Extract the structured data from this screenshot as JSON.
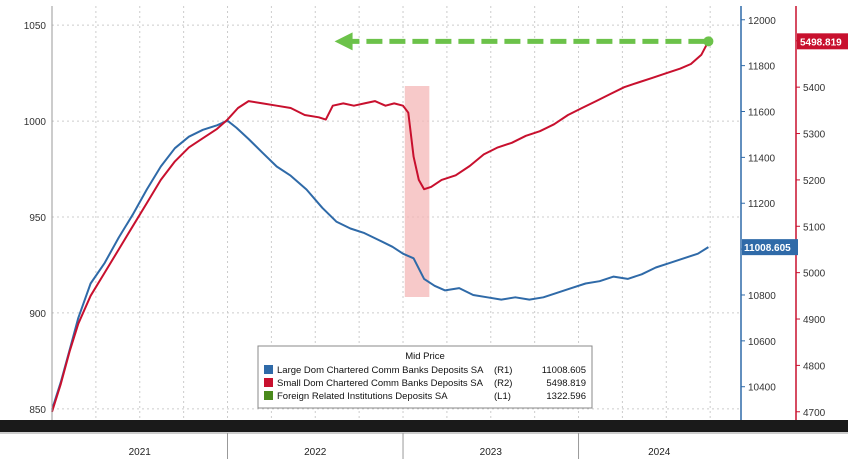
{
  "chart_data": {
    "type": "line",
    "x_labels": [
      "2021",
      "2022",
      "2023",
      "2024"
    ],
    "axes": {
      "left": {
        "id": "L1",
        "ylim": [
          840,
          1060
        ],
        "ticks": [
          850,
          900,
          950,
          1000,
          1050
        ]
      },
      "right1": {
        "id": "R1",
        "ylim": [
          10220,
          12060
        ],
        "ticks": [
          10400,
          10600,
          10800,
          11000,
          11200,
          11400,
          11600,
          11800,
          12000
        ],
        "color": "#2f6aa8"
      },
      "right2": {
        "id": "R2",
        "ylim": [
          4665,
          5575
        ],
        "ticks": [
          4700,
          4800,
          4900,
          5000,
          5100,
          5200,
          5300,
          5400,
          5500
        ],
        "color": "#c8102e"
      }
    },
    "legend": {
      "title": "Mid Price",
      "placement": "bottom-center",
      "entries": [
        {
          "name": "Large Dom Chartered Comm Banks Deposits SA",
          "axis": "(R1)",
          "last": "11008.605",
          "color": "#2f6aa8"
        },
        {
          "name": "Small Dom Chartered Comm Banks Deposits SA",
          "axis": "(R2)",
          "last": "5498.819",
          "color": "#c8102e"
        },
        {
          "name": "Foreign Related Institutions Deposits SA",
          "axis": "(L1)",
          "last": "1322.596",
          "color": "#4a8a1c"
        }
      ]
    },
    "series": [
      {
        "name": "Large Dom Chartered Comm Banks Deposits SA",
        "axis": "right1",
        "color": "#2f6aa8",
        "points": [
          [
            2021.0,
            10300
          ],
          [
            2021.05,
            10420
          ],
          [
            2021.1,
            10560
          ],
          [
            2021.15,
            10700
          ],
          [
            2021.22,
            10850
          ],
          [
            2021.3,
            10940
          ],
          [
            2021.38,
            11050
          ],
          [
            2021.46,
            11150
          ],
          [
            2021.54,
            11260
          ],
          [
            2021.62,
            11360
          ],
          [
            2021.7,
            11440
          ],
          [
            2021.78,
            11490
          ],
          [
            2021.86,
            11520
          ],
          [
            2021.94,
            11540
          ],
          [
            2022.0,
            11560
          ],
          [
            2022.05,
            11530
          ],
          [
            2022.12,
            11480
          ],
          [
            2022.2,
            11420
          ],
          [
            2022.28,
            11360
          ],
          [
            2022.36,
            11320
          ],
          [
            2022.45,
            11260
          ],
          [
            2022.54,
            11180
          ],
          [
            2022.62,
            11120
          ],
          [
            2022.7,
            11090
          ],
          [
            2022.78,
            11070
          ],
          [
            2022.86,
            11040
          ],
          [
            2022.94,
            11010
          ],
          [
            2023.0,
            10980
          ],
          [
            2023.06,
            10960
          ],
          [
            2023.12,
            10870
          ],
          [
            2023.18,
            10840
          ],
          [
            2023.24,
            10820
          ],
          [
            2023.32,
            10830
          ],
          [
            2023.4,
            10800
          ],
          [
            2023.48,
            10790
          ],
          [
            2023.56,
            10780
          ],
          [
            2023.64,
            10790
          ],
          [
            2023.72,
            10780
          ],
          [
            2023.8,
            10790
          ],
          [
            2023.88,
            10810
          ],
          [
            2023.96,
            10830
          ],
          [
            2024.04,
            10850
          ],
          [
            2024.12,
            10860
          ],
          [
            2024.2,
            10880
          ],
          [
            2024.28,
            10870
          ],
          [
            2024.36,
            10890
          ],
          [
            2024.44,
            10920
          ],
          [
            2024.52,
            10940
          ],
          [
            2024.6,
            10960
          ],
          [
            2024.68,
            10980
          ],
          [
            2024.74,
            11008.605
          ]
        ]
      },
      {
        "name": "Small Dom Chartered Comm Banks Deposits SA",
        "axis": "right2",
        "color": "#c8102e",
        "points": [
          [
            2021.0,
            4700
          ],
          [
            2021.05,
            4760
          ],
          [
            2021.1,
            4830
          ],
          [
            2021.15,
            4890
          ],
          [
            2021.22,
            4950
          ],
          [
            2021.3,
            5000
          ],
          [
            2021.38,
            5050
          ],
          [
            2021.46,
            5100
          ],
          [
            2021.54,
            5150
          ],
          [
            2021.62,
            5200
          ],
          [
            2021.7,
            5240
          ],
          [
            2021.78,
            5270
          ],
          [
            2021.86,
            5290
          ],
          [
            2021.94,
            5310
          ],
          [
            2022.0,
            5330
          ],
          [
            2022.06,
            5355
          ],
          [
            2022.12,
            5370
          ],
          [
            2022.2,
            5365
          ],
          [
            2022.28,
            5360
          ],
          [
            2022.36,
            5355
          ],
          [
            2022.44,
            5340
          ],
          [
            2022.52,
            5335
          ],
          [
            2022.56,
            5330
          ],
          [
            2022.6,
            5360
          ],
          [
            2022.66,
            5365
          ],
          [
            2022.72,
            5360
          ],
          [
            2022.78,
            5365
          ],
          [
            2022.84,
            5370
          ],
          [
            2022.9,
            5360
          ],
          [
            2022.95,
            5365
          ],
          [
            2023.0,
            5360
          ],
          [
            2023.03,
            5345
          ],
          [
            2023.06,
            5250
          ],
          [
            2023.09,
            5200
          ],
          [
            2023.12,
            5180
          ],
          [
            2023.16,
            5185
          ],
          [
            2023.22,
            5200
          ],
          [
            2023.3,
            5210
          ],
          [
            2023.38,
            5230
          ],
          [
            2023.46,
            5255
          ],
          [
            2023.54,
            5270
          ],
          [
            2023.62,
            5280
          ],
          [
            2023.7,
            5295
          ],
          [
            2023.78,
            5305
          ],
          [
            2023.86,
            5320
          ],
          [
            2023.94,
            5340
          ],
          [
            2024.02,
            5355
          ],
          [
            2024.1,
            5370
          ],
          [
            2024.18,
            5385
          ],
          [
            2024.26,
            5400
          ],
          [
            2024.34,
            5410
          ],
          [
            2024.42,
            5420
          ],
          [
            2024.5,
            5430
          ],
          [
            2024.58,
            5440
          ],
          [
            2024.64,
            5450
          ],
          [
            2024.7,
            5470
          ],
          [
            2024.74,
            5498.819
          ]
        ]
      }
    ],
    "annotations": {
      "shaded_region": {
        "x_start": 2023.01,
        "x_end": 2023.15,
        "color": "#f4b7b7"
      },
      "arrow": {
        "from_x": 2024.74,
        "to_x": 2022.61,
        "y_axis": "right2",
        "y": 5498.819,
        "color": "#6cc24a",
        "style": "dashed"
      },
      "end_labels": [
        {
          "text": "5498.819",
          "axis": "right2",
          "color": "#c8102e"
        },
        {
          "text": "11008.605",
          "axis": "right1",
          "color": "#2f6aa8"
        }
      ]
    }
  }
}
